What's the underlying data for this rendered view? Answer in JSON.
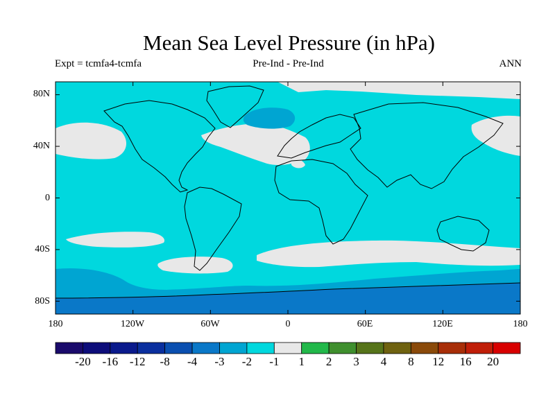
{
  "title": "Mean Sea Level Pressure (in hPa)",
  "subtitle_left": "Expt = tcmfa4-tcmfa",
  "subtitle_center": "Pre-Ind - Pre-Ind",
  "subtitle_right": "ANN",
  "colors": {
    "ocean_minus2_minus1": "#00d8de",
    "near_zero": "#e8e8e8",
    "minus3_minus2": "#00a5d2",
    "minus4_minus3": "#0a78c8",
    "coast": "#000000"
  },
  "chart_data": {
    "type": "heatmap",
    "variable": "Mean Sea Level Pressure",
    "units": "hPa",
    "x_ticks": [
      "180",
      "120W",
      "60W",
      "0",
      "60E",
      "120E",
      "180"
    ],
    "y_ticks": [
      "80N",
      "40N",
      "0",
      "40S",
      "80S"
    ],
    "xlim": [
      -180,
      180
    ],
    "ylim": [
      -90,
      90
    ],
    "colorbar": {
      "labels": [
        "-20",
        "-16",
        "-12",
        "-8",
        "-4",
        "-3",
        "-2",
        "-1",
        "1",
        "2",
        "3",
        "4",
        "8",
        "12",
        "16",
        "20"
      ],
      "colors": [
        "#1a0a6b",
        "#0d0d7a",
        "#0a1a8c",
        "#0a2f9e",
        "#0a4fb0",
        "#0a78c8",
        "#00a5d2",
        "#00d8de",
        "#e8e8e8",
        "#22b84a",
        "#3f8f2e",
        "#56741a",
        "#6f6210",
        "#8a4a0a",
        "#a82e08",
        "#c01e08",
        "#d80000"
      ]
    }
  }
}
